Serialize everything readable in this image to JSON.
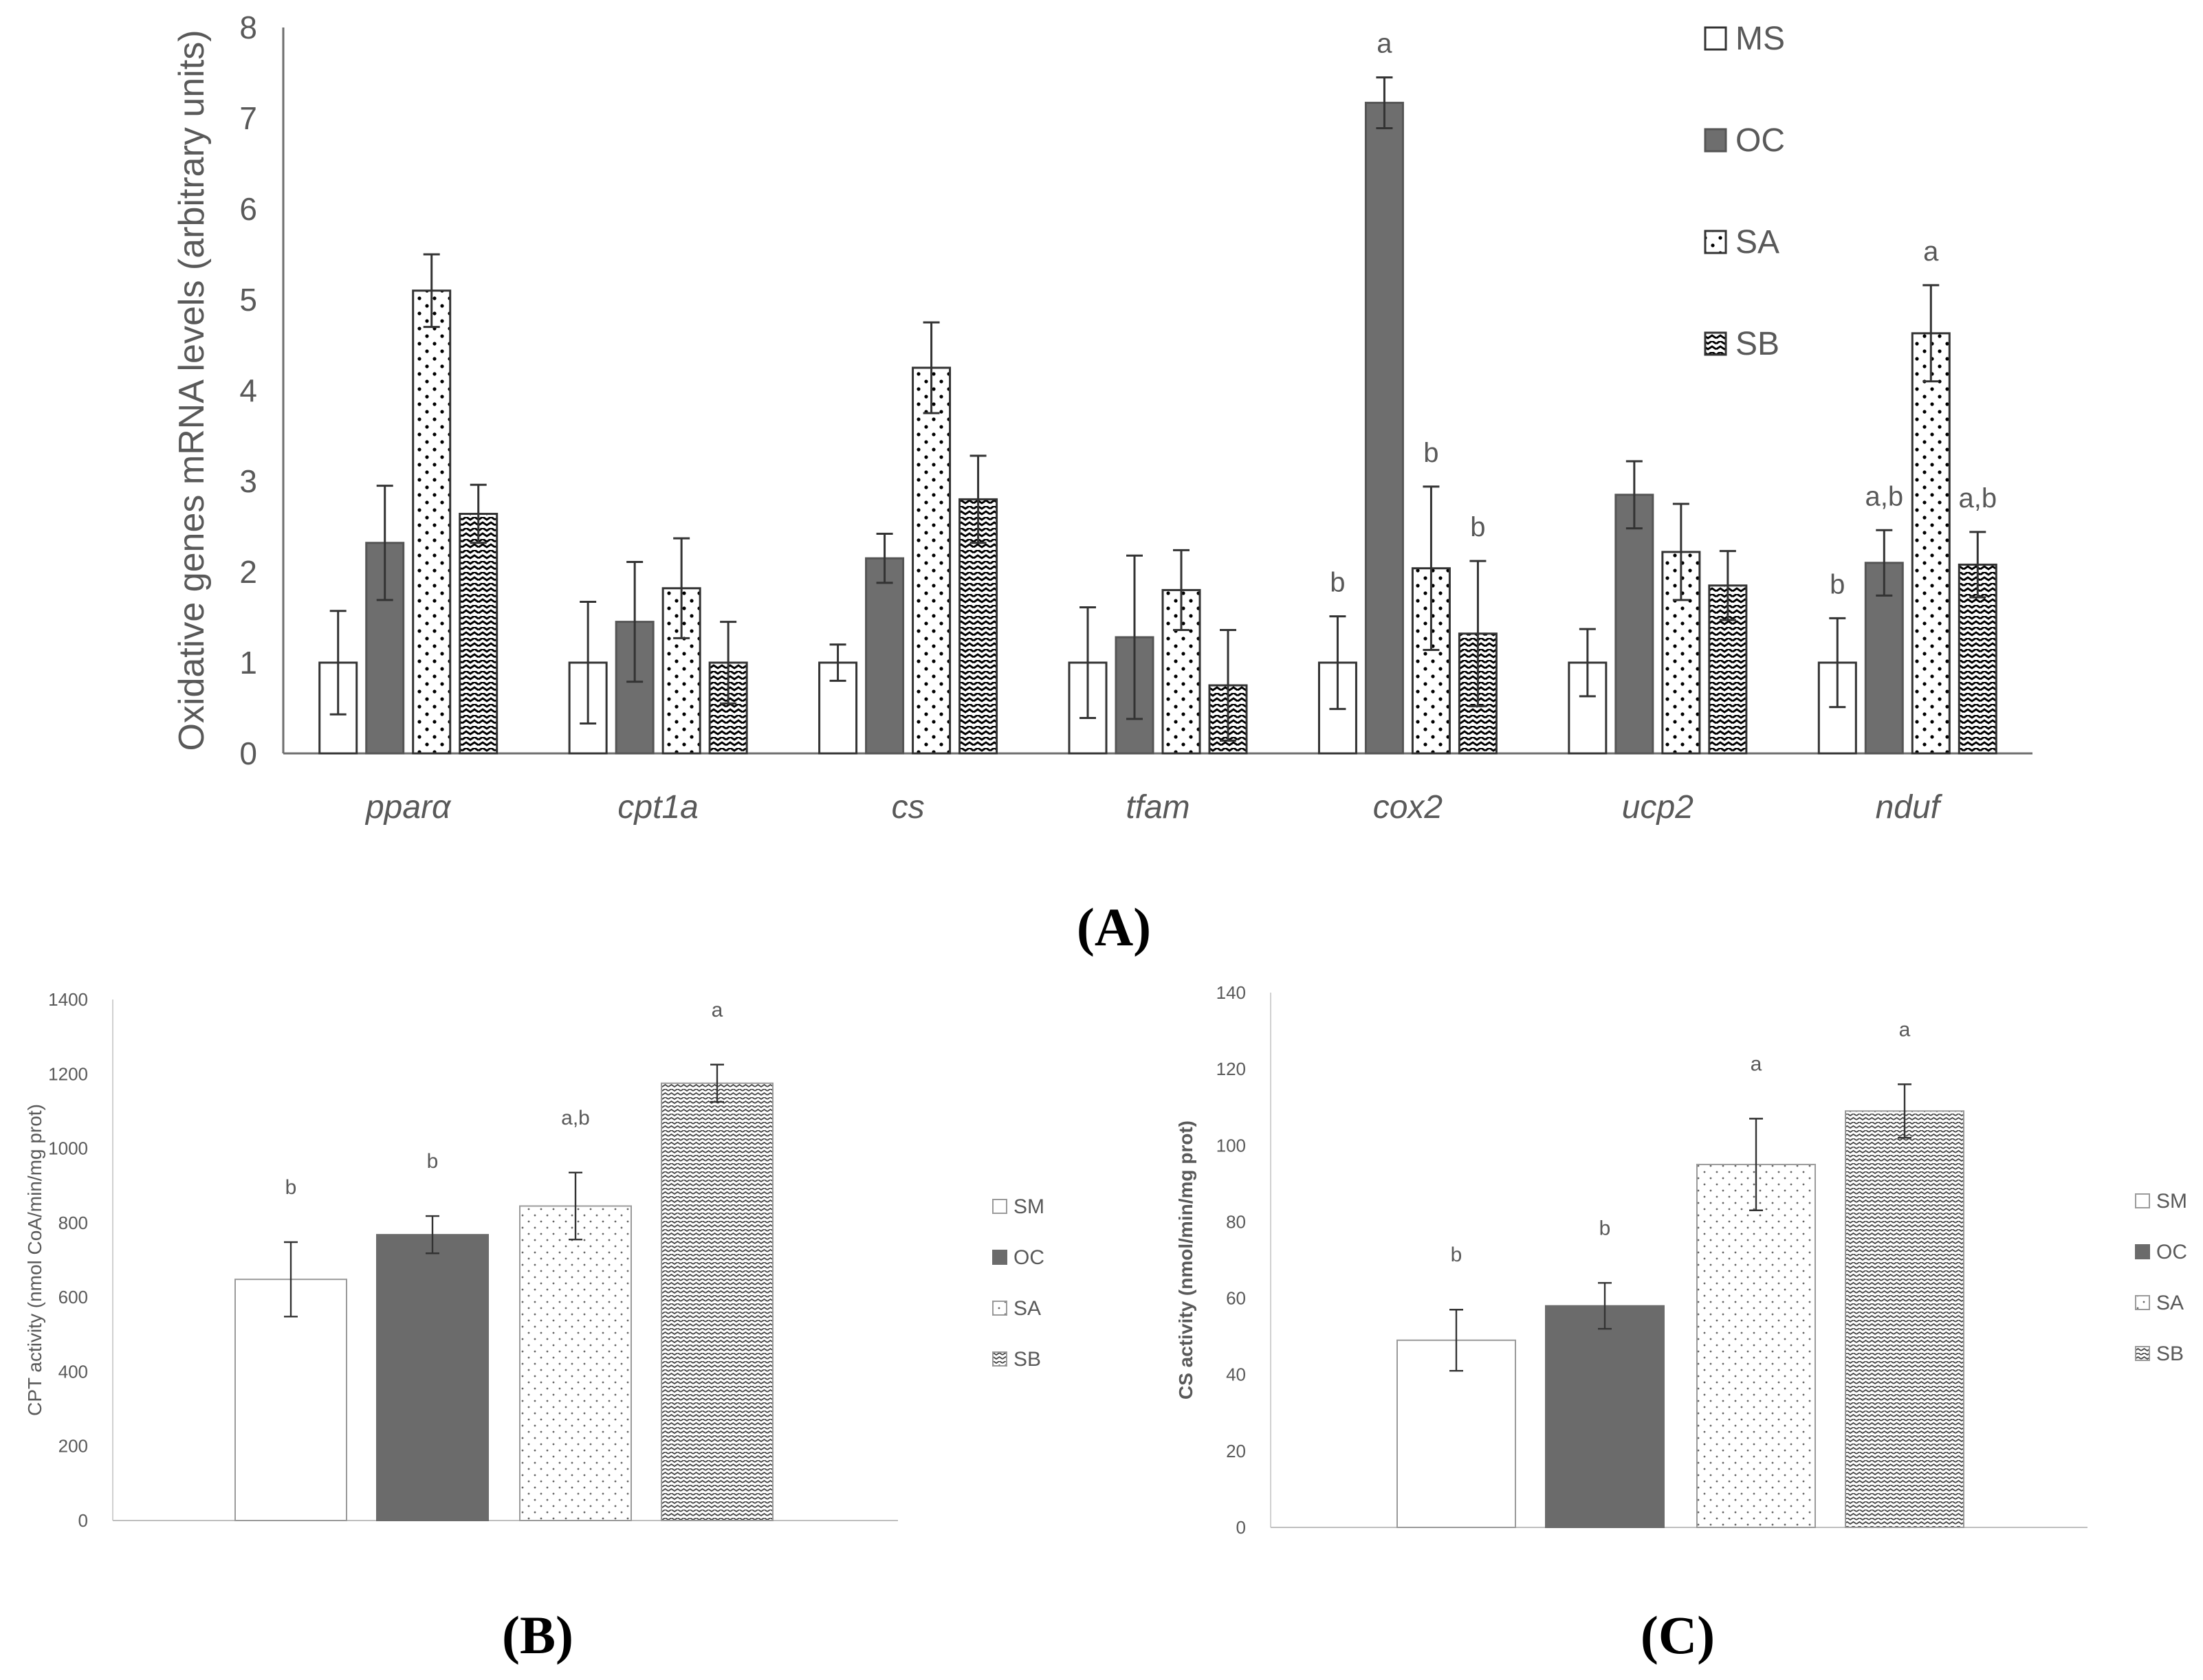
{
  "panels": {
    "A": {
      "letter": "(A)",
      "chart_data": {
        "type": "bar",
        "title": "",
        "ylabel": "Oxidative genes mRNA levels (arbitrary units)",
        "xlabel": "",
        "ylim": [
          0,
          8
        ],
        "yticks": [
          0,
          1,
          2,
          3,
          4,
          5,
          6,
          7,
          8
        ],
        "categories": [
          "pparα",
          "cpt1a",
          "cs",
          "tfam",
          "cox2",
          "ucp2",
          "nduf"
        ],
        "series": [
          {
            "name": "MS",
            "pattern": "white",
            "values": [
              1.0,
              1.0,
              1.0,
              1.0,
              1.0,
              1.0,
              1.0
            ],
            "errors": [
              0.57,
              0.67,
              0.2,
              0.61,
              0.51,
              0.37,
              0.49
            ],
            "labels": [
              "",
              "",
              "",
              "",
              "b",
              "",
              "b"
            ]
          },
          {
            "name": "OC",
            "pattern": "gray",
            "values": [
              2.32,
              1.45,
              2.15,
              1.28,
              7.17,
              2.85,
              2.1
            ],
            "errors": [
              0.63,
              0.66,
              0.27,
              0.9,
              0.28,
              0.37,
              0.36
            ],
            "labels": [
              "",
              "",
              "",
              "",
              "a",
              "",
              "a,b"
            ]
          },
          {
            "name": "SA",
            "pattern": "dots",
            "values": [
              5.1,
              1.82,
              4.25,
              1.8,
              2.04,
              2.22,
              4.63
            ],
            "errors": [
              0.4,
              0.55,
              0.5,
              0.44,
              0.9,
              0.53,
              0.53
            ],
            "labels": [
              "",
              "",
              "",
              "",
              "b",
              "",
              "a"
            ]
          },
          {
            "name": "SB",
            "pattern": "zigzag",
            "values": [
              2.64,
              1.0,
              2.8,
              0.75,
              1.32,
              1.85,
              2.08
            ],
            "errors": [
              0.32,
              0.45,
              0.48,
              0.61,
              0.8,
              0.38,
              0.36
            ],
            "labels": [
              "",
              "",
              "",
              "",
              "b",
              "",
              "a,b"
            ]
          }
        ],
        "legend": [
          "MS",
          "OC",
          "SA",
          "SB"
        ],
        "legend_position": "top-right"
      }
    },
    "B": {
      "letter": "(B)",
      "chart_data": {
        "type": "bar",
        "title": "",
        "ylabel": "CPT activity (nmol CoA/min/mg prot)",
        "xlabel": "",
        "ylim": [
          0,
          1400
        ],
        "yticks": [
          0,
          200,
          400,
          600,
          800,
          1000,
          1200,
          1400
        ],
        "categories": [
          "SM",
          "OC",
          "SA",
          "SB"
        ],
        "values": [
          648,
          768,
          845,
          1175
        ],
        "errors": [
          100,
          50,
          90,
          50
        ],
        "labels": [
          "b",
          "b",
          "a,b",
          "a"
        ],
        "patterns": [
          "white",
          "gray",
          "dots",
          "zigzag"
        ],
        "legend": [
          "SM",
          "OC",
          "SA",
          "SB"
        ],
        "legend_position": "right"
      }
    },
    "C": {
      "letter": "(C)",
      "chart_data": {
        "type": "bar",
        "title": "",
        "ylabel": "CS activity (nmol/min/mg prot)",
        "xlabel": "",
        "ylim": [
          0,
          140
        ],
        "yticks": [
          0,
          20,
          40,
          60,
          80,
          100,
          120,
          140
        ],
        "categories": [
          "SM",
          "OC",
          "SA",
          "SB"
        ],
        "values": [
          49,
          58,
          95,
          109
        ],
        "errors": [
          8,
          6,
          12,
          7
        ],
        "labels": [
          "b",
          "b",
          "a",
          "a"
        ],
        "patterns": [
          "white",
          "gray",
          "dots",
          "zigzag"
        ],
        "legend": [
          "SM",
          "OC",
          "SA",
          "SB"
        ],
        "legend_position": "right"
      }
    }
  }
}
